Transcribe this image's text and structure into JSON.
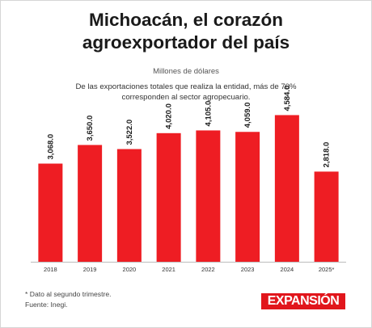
{
  "title_lines": [
    "Michoacán, el corazón",
    "agroexportador del país"
  ],
  "unit_label": "Millones de dólares",
  "subtitle": "De las exportaciones totales que realiza la entidad, más de 70% corresponden al sector agropecuario.",
  "footnote": "* Dato al segundo trimestre.",
  "source": "Fuente: Inegi.",
  "brand": "EXPANSIÓN",
  "colors": {
    "bar": "#ee1d23",
    "brand": "#e1161c",
    "text": "#1a1a1a"
  },
  "chart_data": {
    "type": "bar",
    "categories": [
      "2018",
      "2019",
      "2020",
      "2021",
      "2022",
      "2023",
      "2024",
      "2025*"
    ],
    "values": [
      3068.0,
      3650.0,
      3522.0,
      4020.0,
      4105.0,
      4059.0,
      4584.0,
      2818.0
    ],
    "value_labels": [
      "3,068.0",
      "3,650.0",
      "3,522.0",
      "4,020.0",
      "4,105.0",
      "4,059.0",
      "4,584.0",
      "2,818.0"
    ],
    "ylabel": "",
    "xlabel": "",
    "ylim": [
      0,
      5000
    ],
    "grid": false,
    "legend": "none"
  }
}
